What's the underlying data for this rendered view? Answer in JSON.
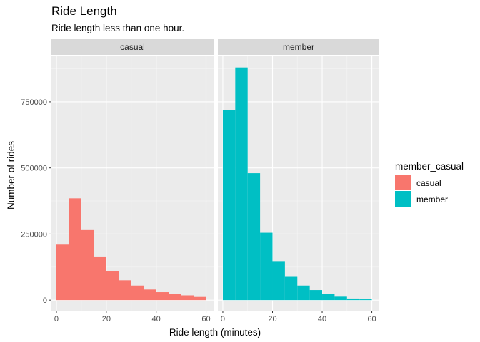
{
  "chart_data": {
    "type": "bar",
    "title": "Ride Length",
    "subtitle": "Ride length less than one hour.",
    "xlabel": "Ride length (minutes)",
    "ylabel": "Number of rides",
    "xlim": [
      -2,
      63
    ],
    "ylim": [
      -40000,
      925000
    ],
    "x_ticks": [
      0,
      20,
      40,
      60
    ],
    "x_tick_labels": [
      "0",
      "20",
      "40",
      "60"
    ],
    "y_ticks": [
      0,
      250000,
      500000,
      750000
    ],
    "y_tick_labels": [
      "0",
      "250000",
      "500000",
      "750000"
    ],
    "bin_edges": [
      0,
      5,
      10,
      15,
      20,
      25,
      30,
      35,
      40,
      45,
      50,
      55,
      60
    ],
    "facets": [
      "casual",
      "member"
    ],
    "series": [
      {
        "name": "casual",
        "color": "#F8766D",
        "values": [
          210000,
          385000,
          265000,
          165000,
          110000,
          75000,
          55000,
          40000,
          30000,
          22000,
          18000,
          12000
        ]
      },
      {
        "name": "member",
        "color": "#00BFC4",
        "values": [
          720000,
          880000,
          480000,
          255000,
          145000,
          88000,
          55000,
          38000,
          22000,
          13000,
          6000,
          3000
        ]
      }
    ],
    "grid": true,
    "legend": {
      "title": "member_casual",
      "position": "right"
    }
  }
}
